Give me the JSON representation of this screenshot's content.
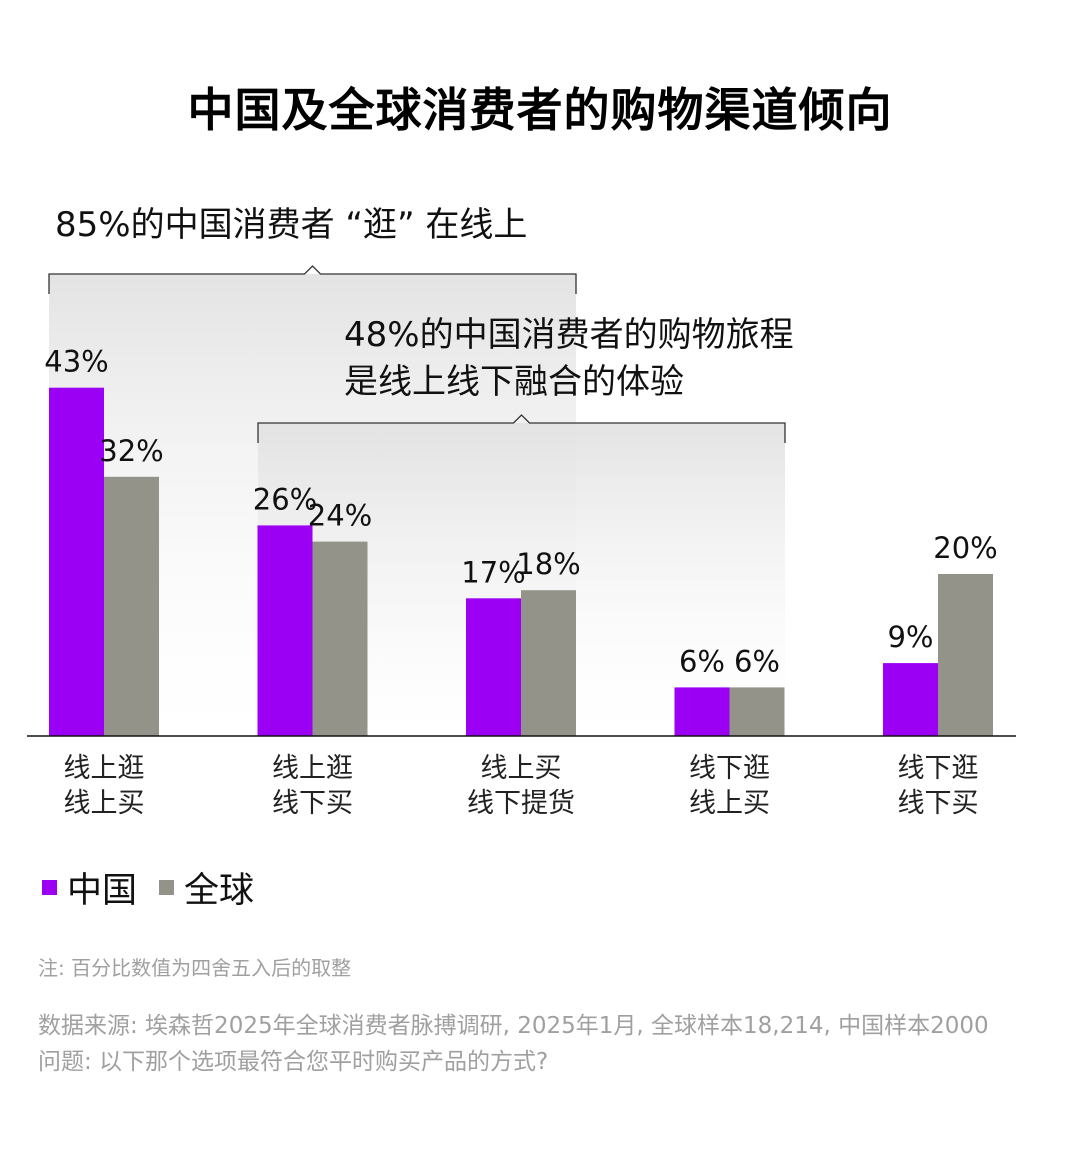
{
  "title": "中国及全球消费者的购物渠道倾向",
  "colors": {
    "china": "#9b00f5",
    "global": "#93938a"
  },
  "annotations": {
    "online_browse": "85%的中国消费者 “逛” 在线上",
    "omni_line1": "48%的中国消费者的购物旅程",
    "omni_line2": "是线上线下融合的体验"
  },
  "chart_data": {
    "type": "bar",
    "title": "中国及全球消费者的购物渠道倾向",
    "categories": [
      [
        "线上逛",
        "线上买"
      ],
      [
        "线上逛",
        "线下买"
      ],
      [
        "线上买",
        "线下提货"
      ],
      [
        "线下逛",
        "线上买"
      ],
      [
        "线下逛",
        "线下买"
      ]
    ],
    "series": [
      {
        "name": "中国",
        "values": [
          43,
          26,
          17,
          6,
          9
        ],
        "labels": [
          "43%",
          "26%",
          "17%",
          "6%",
          "9%"
        ]
      },
      {
        "name": "全球",
        "values": [
          32,
          24,
          18,
          6,
          20
        ],
        "labels": [
          "32%",
          "24%",
          "18%",
          "6%",
          "20%"
        ]
      }
    ],
    "ylim": [
      0,
      43
    ],
    "legend_position": "bottom-left",
    "grid": false
  },
  "legend": {
    "china": "中国",
    "global": "全球"
  },
  "footnote": "注: 百分比数值为四舍五入后的取整",
  "source_line1": "数据来源: 埃森哲2025年全球消费者脉搏调研, 2025年1月, 全球样本18,214, 中国样本2000",
  "source_line2": "问题: 以下那个选项最符合您平时购买产品的方式?"
}
